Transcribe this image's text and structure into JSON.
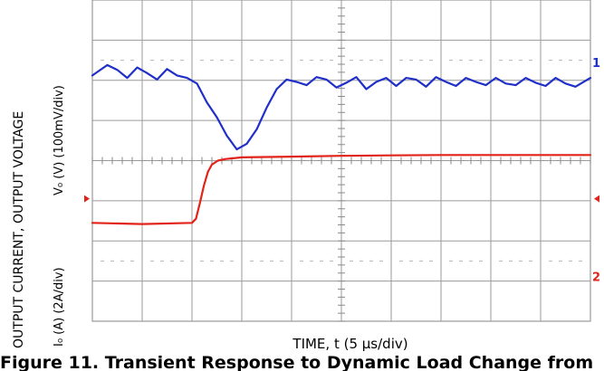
{
  "chart_data": {
    "type": "line",
    "title": "",
    "xlabel": "TIME, t (5 µs/div)",
    "ylabel_top": "OUTPUT VOLTAGE",
    "ylabel_top_units": "V₀ (V) (100mV/div)",
    "ylabel_bottom": "OUTPUT CURRENT,",
    "ylabel_bottom_units": "I₀ (A) (2A/div)",
    "grid": true,
    "xlim": [
      0,
      50
    ],
    "x_units": "µs",
    "divisions": {
      "x": 10,
      "y": 8
    },
    "ylim_divisions": [
      -4,
      4
    ],
    "series": [
      {
        "channel_marker": "1",
        "color": "#1f2fc8",
        "x": [
          0,
          1.5,
          2.5,
          3.5,
          4.5,
          5.5,
          6.5,
          7.5,
          8.5,
          9.5,
          10.5,
          11.5,
          12.5,
          13.5,
          14.5,
          15.5,
          16.5,
          17.5,
          18.5,
          19.5,
          20.5,
          21.5,
          22.5,
          23.5,
          24.5,
          25.5,
          26.5,
          27.5,
          28.5,
          29.5,
          30.5,
          31.5,
          32.5,
          33.5,
          34.5,
          35.5,
          36.5,
          37.5,
          38.5,
          39.5,
          40.5,
          41.5,
          42.5,
          43.5,
          44.5,
          45.5,
          46.5,
          47.5,
          48.5,
          50
        ],
        "y_div": [
          2.12,
          2.38,
          2.26,
          2.06,
          2.32,
          2.18,
          2.02,
          2.28,
          2.12,
          2.06,
          1.92,
          1.45,
          1.08,
          0.62,
          0.28,
          0.42,
          0.78,
          1.32,
          1.78,
          2.02,
          1.96,
          1.88,
          2.08,
          2.02,
          1.82,
          1.94,
          2.08,
          1.78,
          1.96,
          2.06,
          1.86,
          2.06,
          2.02,
          1.84,
          2.08,
          1.96,
          1.86,
          2.06,
          1.96,
          1.88,
          2.06,
          1.92,
          1.88,
          2.06,
          1.94,
          1.86,
          2.06,
          1.92,
          1.84,
          2.06
        ]
      },
      {
        "channel_marker": "2",
        "color": "#e2231a",
        "x": [
          0,
          5,
          10,
          10.4,
          10.8,
          11.2,
          11.6,
          12.0,
          12.6,
          13.4,
          15,
          20,
          25,
          30,
          35,
          40,
          45,
          50
        ],
        "y_div": [
          -1.55,
          -1.58,
          -1.55,
          -1.45,
          -1.05,
          -0.62,
          -0.28,
          -0.1,
          0.0,
          0.04,
          0.08,
          0.1,
          0.12,
          0.13,
          0.14,
          0.14,
          0.14,
          0.14
        ]
      }
    ],
    "ground_markers": [
      "1",
      "2"
    ]
  },
  "caption": "Figure 11. Transient Response to Dynamic Load Change from"
}
